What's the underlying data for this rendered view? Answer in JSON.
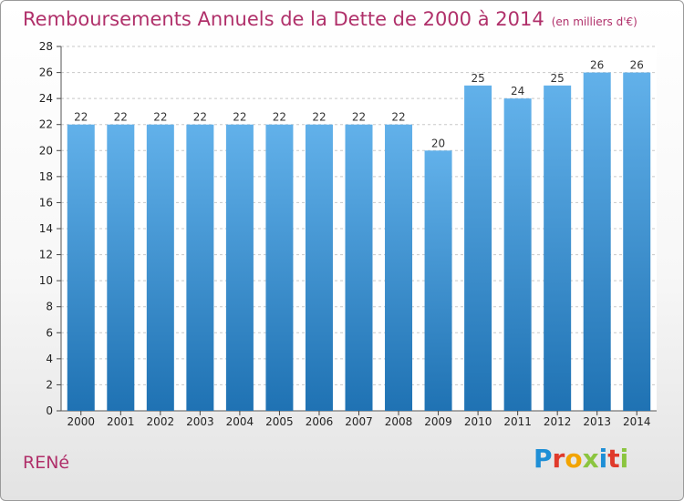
{
  "title": "Remboursements Annuels de la Dette de 2000 à 2014",
  "unit_note": "(en milliers d'€)",
  "commune": "RENé",
  "logo_text": "Proxiti",
  "colors": {
    "title": "#b0306a",
    "bar_light": "#62b1ea",
    "bar_dark": "#1f72b3",
    "logo": [
      "#1f8fd6",
      "#e03a2b",
      "#f2a400",
      "#8bc53f",
      "#1f8fd6",
      "#e03a2b",
      "#8bc53f"
    ]
  },
  "chart_data": {
    "type": "bar",
    "title": "Remboursements Annuels de la Dette de 2000 à 2014",
    "xlabel": "",
    "ylabel": "",
    "categories": [
      "2000",
      "2001",
      "2002",
      "2003",
      "2004",
      "2005",
      "2006",
      "2007",
      "2008",
      "2009",
      "2010",
      "2011",
      "2012",
      "2013",
      "2014"
    ],
    "values": [
      22,
      22,
      22,
      22,
      22,
      22,
      22,
      22,
      22,
      20,
      25,
      24,
      25,
      26,
      26
    ],
    "ylim": [
      0,
      28
    ],
    "yticks": [
      0,
      2,
      4,
      6,
      8,
      10,
      12,
      14,
      16,
      18,
      20,
      22,
      24,
      26,
      28
    ],
    "grid": true,
    "legend": "none"
  }
}
